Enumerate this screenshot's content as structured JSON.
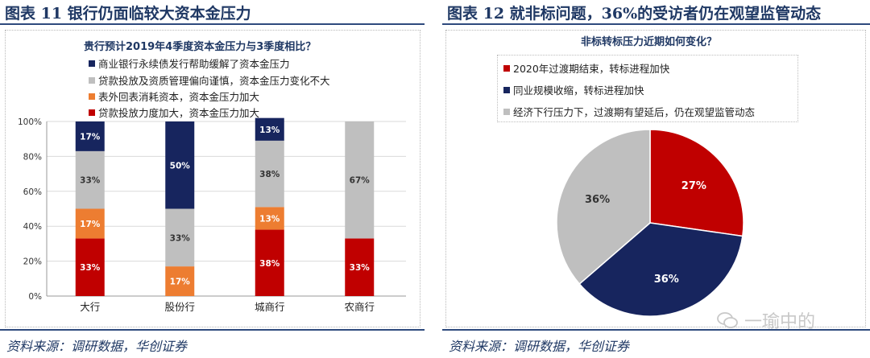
{
  "left": {
    "figure_title": "图表 11  银行仍面临较大资本金压力",
    "source": "资料来源：调研数据，华创证券"
  },
  "right": {
    "figure_title": "图表 12  就非标问题，36%的受访者仍在观望监管动态",
    "source": "资料来源：调研数据，华创证券"
  },
  "watermark": "一瑜中的",
  "colors": {
    "red": "#c00000",
    "navy": "#17255e",
    "gray": "#bfbfbf",
    "orange": "#ed7d31",
    "title": "#1f3864"
  },
  "chart_data": [
    {
      "type": "bar",
      "stacked": true,
      "title": "贵行预计2019年4季度资本金压力与3季度相比？",
      "categories": [
        "大行",
        "股份行",
        "城商行",
        "农商行"
      ],
      "series": [
        {
          "name": "贷款投放力度加大，资本金压力加大",
          "color": "#c00000",
          "values": [
            33,
            0,
            38,
            33
          ],
          "labels": [
            "33%",
            "",
            "38%",
            "33%"
          ]
        },
        {
          "name": "表外回表消耗资本，资本金压力加大",
          "color": "#ed7d31",
          "values": [
            17,
            17,
            13,
            0
          ],
          "labels": [
            "17%",
            "17%",
            "13%",
            ""
          ]
        },
        {
          "name": "贷款投放及资质管理偏向谨慎，资本金压力变化不大",
          "color": "#bfbfbf",
          "values": [
            33,
            33,
            38,
            67
          ],
          "labels": [
            "33%",
            "33%",
            "38%",
            "67%"
          ]
        },
        {
          "name": "商业银行永续债发行帮助缓解了资本金压力",
          "color": "#17255e",
          "values": [
            17,
            50,
            13,
            0
          ],
          "labels": [
            "17%",
            "50%",
            "13%",
            ""
          ]
        }
      ],
      "legend_order": [
        "商业银行永续债发行帮助缓解了资本金压力",
        "贷款投放及资质管理偏向谨慎，资本金压力变化不大",
        "表外回表消耗资本，资本金压力加大",
        "贷款投放力度加大，资本金压力加大"
      ],
      "y_ticks": [
        "0%",
        "20%",
        "40%",
        "60%",
        "80%",
        "100%"
      ],
      "ylim": [
        0,
        100
      ]
    },
    {
      "type": "pie",
      "title": "非标转标压力近期如何变化？",
      "slices": [
        {
          "name": "2020年过渡期结束，转标进程加快",
          "value": 27,
          "label": "27%",
          "color": "#c00000"
        },
        {
          "name": "同业规模收缩，转标进程加快",
          "value": 36,
          "label": "36%",
          "color": "#17255e"
        },
        {
          "name": "经济下行压力下，过渡期有望延后，仍在观望监管动态",
          "value": 36,
          "label": "36%",
          "color": "#bfbfbf"
        }
      ]
    }
  ]
}
